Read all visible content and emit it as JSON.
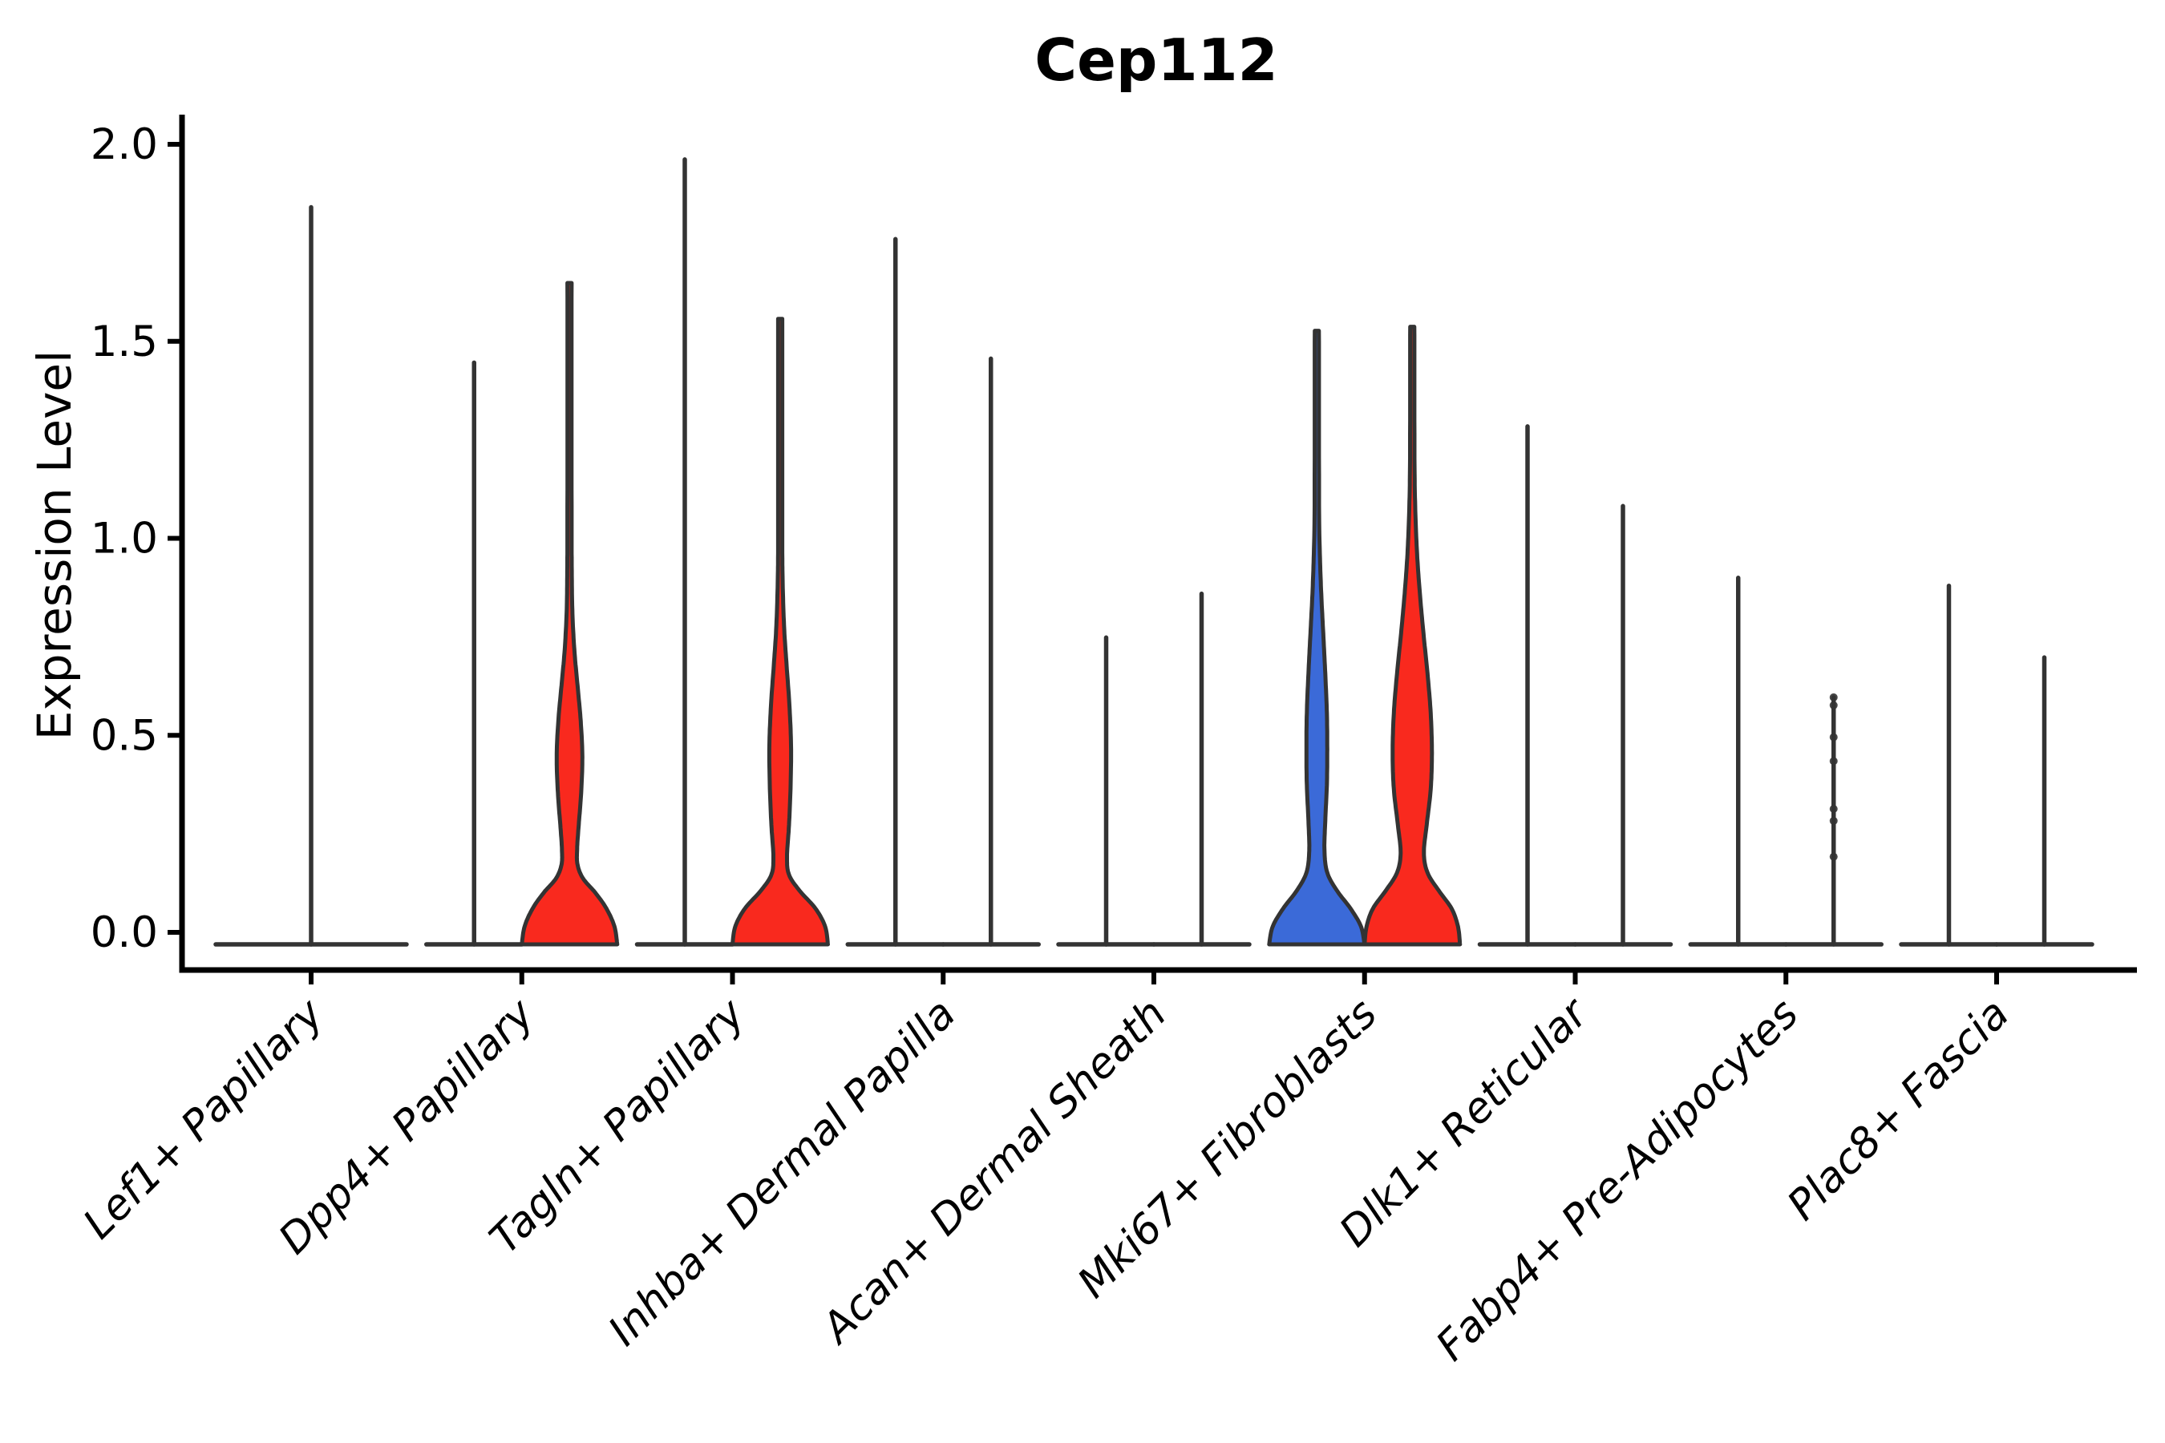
{
  "title": "Cep112",
  "y_axis": {
    "label": "Expression Level",
    "tick_labels": [
      "0.0",
      "0.5",
      "1.0",
      "1.5",
      "2.0"
    ],
    "tick_values": [
      0.0,
      0.5,
      1.0,
      1.5,
      2.0
    ]
  },
  "x_axis": {
    "categories": [
      "Lef1+ Papillary",
      "Dpp4+ Papillary",
      "Tagln+ Papillary",
      "Inhba+ Dermal Papilla",
      "Acan+ Dermal Sheath",
      "Mki67+ Fibroblasts",
      "Dlk1+ Reticular",
      "Fabp4+ Pre-Adipocytes",
      "Plac8+ Fascia"
    ],
    "label_rotation_deg": 45,
    "label_style": "italic"
  },
  "colors": {
    "red_fill": "#F9291E",
    "blue_fill": "#3B6AD8",
    "violin_outline": "#333333",
    "axis": "#000000",
    "background": "#ffffff"
  },
  "chart_data": {
    "type": "violin",
    "title": "Cep112",
    "xlabel": "",
    "ylabel": "Expression Level",
    "ylim": [
      0,
      2.0
    ],
    "yticks": [
      0.0,
      0.5,
      1.0,
      1.5,
      2.0
    ],
    "grid": false,
    "legend": "none",
    "categories": [
      "Lef1+ Papillary",
      "Dpp4+ Papillary",
      "Tagln+ Papillary",
      "Inhba+ Dermal Papilla",
      "Acan+ Dermal Sheath",
      "Mki67+ Fibroblasts",
      "Dlk1+ Reticular",
      "Fabp4+ Pre-Adipocytes",
      "Plac8+ Fascia"
    ],
    "groups": [
      {
        "category": "Lef1+ Papillary",
        "violins": [
          {
            "split": "single",
            "fill": "none",
            "body": "spike",
            "max_expression": 1.85,
            "zero_density_spans_full_width": true
          }
        ]
      },
      {
        "category": "Dpp4+ Papillary",
        "violins": [
          {
            "split": "left",
            "fill": "none",
            "body": "spike",
            "max_expression": 1.46
          },
          {
            "split": "right",
            "fill": "red",
            "body": "density",
            "max_expression": 1.66,
            "profile": [
              [
                0,
                59.5
              ],
              [
                0.045,
                56
              ],
              [
                0.09,
                46
              ],
              [
                0.13,
                32
              ],
              [
                0.165,
                17
              ],
              [
                0.2,
                10
              ],
              [
                0.24,
                9.5
              ],
              [
                0.3,
                11.5
              ],
              [
                0.38,
                14.5
              ],
              [
                0.47,
                16
              ],
              [
                0.56,
                14
              ],
              [
                0.65,
                10
              ],
              [
                0.74,
                6
              ],
              [
                0.84,
                3.5
              ],
              [
                0.95,
                2.8
              ],
              [
                1.1,
                2.6
              ],
              [
                1.66,
                2.6
              ]
            ]
          }
        ]
      },
      {
        "category": "Tagln+ Papillary",
        "violins": [
          {
            "split": "left",
            "fill": "none",
            "body": "spike",
            "max_expression": 1.97
          },
          {
            "split": "right",
            "fill": "red",
            "body": "density",
            "max_expression": 1.57,
            "profile": [
              [
                0,
                59.5
              ],
              [
                0.045,
                56
              ],
              [
                0.09,
                44
              ],
              [
                0.135,
                24
              ],
              [
                0.175,
                11
              ],
              [
                0.22,
                8.5
              ],
              [
                0.3,
                11
              ],
              [
                0.4,
                13
              ],
              [
                0.5,
                13.5
              ],
              [
                0.6,
                11.5
              ],
              [
                0.7,
                8
              ],
              [
                0.8,
                4.8
              ],
              [
                0.92,
                3
              ],
              [
                1.05,
                2.6
              ],
              [
                1.57,
                2.6
              ]
            ]
          }
        ]
      },
      {
        "category": "Inhba+ Dermal Papilla",
        "violins": [
          {
            "split": "left",
            "fill": "none",
            "body": "spike",
            "max_expression": 1.77
          },
          {
            "split": "right",
            "fill": "none",
            "body": "spike",
            "max_expression": 1.47
          }
        ]
      },
      {
        "category": "Acan+ Dermal Sheath",
        "violins": [
          {
            "split": "left",
            "fill": "none",
            "body": "spike",
            "max_expression": 0.77
          },
          {
            "split": "right",
            "fill": "none",
            "body": "spike",
            "max_expression": 0.88
          }
        ]
      },
      {
        "category": "Mki67+ Fibroblasts",
        "violins": [
          {
            "split": "left",
            "fill": "blue",
            "body": "density",
            "max_expression": 1.54,
            "profile": [
              [
                0,
                59.5
              ],
              [
                0.045,
                55
              ],
              [
                0.09,
                42
              ],
              [
                0.135,
                25
              ],
              [
                0.18,
                13
              ],
              [
                0.235,
                9.5
              ],
              [
                0.31,
                10.5
              ],
              [
                0.4,
                12.5
              ],
              [
                0.49,
                13
              ],
              [
                0.58,
                12.5
              ],
              [
                0.68,
                10.5
              ],
              [
                0.78,
                8
              ],
              [
                0.88,
                5.5
              ],
              [
                0.98,
                3.8
              ],
              [
                1.1,
                2.8
              ],
              [
                1.54,
                2.6
              ]
            ]
          },
          {
            "split": "right",
            "fill": "red",
            "body": "density",
            "max_expression": 1.55,
            "profile": [
              [
                0,
                59.5
              ],
              [
                0.045,
                57
              ],
              [
                0.09,
                49
              ],
              [
                0.135,
                33
              ],
              [
                0.18,
                19
              ],
              [
                0.23,
                14.5
              ],
              [
                0.3,
                18
              ],
              [
                0.39,
                23
              ],
              [
                0.48,
                24.5
              ],
              [
                0.58,
                23
              ],
              [
                0.68,
                19
              ],
              [
                0.78,
                14
              ],
              [
                0.88,
                9.5
              ],
              [
                0.98,
                6
              ],
              [
                1.09,
                3.8
              ],
              [
                1.22,
                2.8
              ],
              [
                1.55,
                2.6
              ]
            ]
          }
        ]
      },
      {
        "category": "Dlk1+ Reticular",
        "violins": [
          {
            "split": "left",
            "fill": "none",
            "body": "spike",
            "max_expression": 1.3
          },
          {
            "split": "right",
            "fill": "none",
            "body": "spike",
            "max_expression": 1.1
          }
        ]
      },
      {
        "category": "Fabp4+ Pre-Adipocytes",
        "violins": [
          {
            "split": "left",
            "fill": "none",
            "body": "spike",
            "max_expression": 0.92
          },
          {
            "split": "right",
            "fill": "none",
            "body": "spike",
            "max_expression": 0.62,
            "jitter_points": [
              0.62,
              0.6,
              0.52,
              0.46,
              0.34,
              0.31,
              0.22
            ]
          }
        ]
      },
      {
        "category": "Plac8+ Fascia",
        "violins": [
          {
            "split": "left",
            "fill": "none",
            "body": "spike",
            "max_expression": 0.9
          },
          {
            "split": "right",
            "fill": "none",
            "body": "spike",
            "max_expression": 0.72
          }
        ]
      }
    ]
  }
}
